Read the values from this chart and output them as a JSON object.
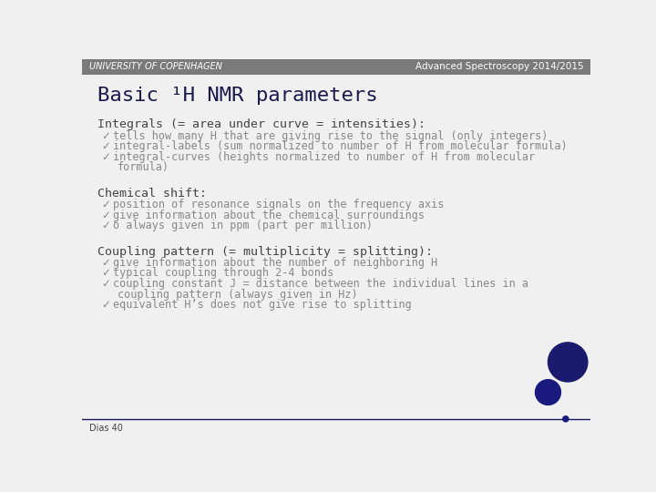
{
  "header_bg": "#7a7a7a",
  "header_text_left": "UNIVERSITY OF COPENHAGEN",
  "header_text_right": "Advanced Spectroscopy 2014/2015",
  "header_font_color": "#ffffff",
  "body_bg": "#f0f0f0",
  "title": "Basic ¹H NMR parameters",
  "title_color": "#1a1a4e",
  "section1_heading": "Integrals (= area under curve = intensities):",
  "section1_bullets": [
    "tells how many H that are giving rise to the signal (only integers)",
    "integral-labels (sum normalized to number of H from molecular formula)",
    "integral-curves (heights normalized to number of H from molecular\n    formula)"
  ],
  "section2_heading": "Chemical shift:",
  "section2_bullets": [
    "position of resonance signals on the frequency axis",
    "give information about the chemical surroundings",
    "δ always given in ppm (part per million)"
  ],
  "section3_heading": "Coupling pattern (= multiplicity = splitting):",
  "section3_bullets": [
    "give information about the number of neighboring H",
    "typical coupling through 2-4 bonds",
    "coupling constant J = distance between the individual lines in a\n    coupling pattern (always given in Hz)",
    "equivalent H’s does not give rise to splitting"
  ],
  "footer_text": "Dias 40",
  "footer_line_color": "#1a1a5e",
  "text_color": "#888888",
  "heading_color": "#444444",
  "bullet_char": "✓",
  "circle_color": "#1a1a7e",
  "logo_circle_color": "#1a1a6e"
}
